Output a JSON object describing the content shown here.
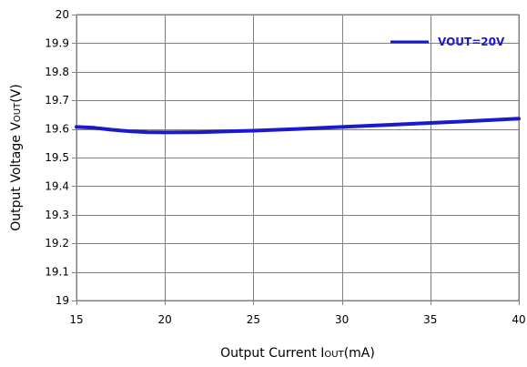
{
  "chart_data": {
    "type": "line",
    "xlabel": "Output Current IOUT(mA)",
    "xlabel_parts": {
      "pre": "Output Current I",
      "sub": "OUT",
      "post": "(mA)"
    },
    "ylabel": "Output Voltage VOUT(V)",
    "ylabel_parts": {
      "pre": "Output Voltage V",
      "sub": "OUT",
      "post": "(V)"
    },
    "xlim": [
      15,
      40
    ],
    "ylim": [
      19,
      20
    ],
    "x_ticks": [
      "15",
      "20",
      "25",
      "30",
      "35",
      "40"
    ],
    "y_ticks": [
      "19",
      "19.1",
      "19.2",
      "19.3",
      "19.4",
      "19.5",
      "19.6",
      "19.7",
      "19.8",
      "19.9",
      "20"
    ],
    "grid": true,
    "legend_position": "top-right",
    "series": [
      {
        "name": "VOUT=20V",
        "color": "#1a1acc",
        "x": [
          15,
          16,
          17,
          18,
          19,
          20,
          22,
          25,
          27.5,
          30,
          32.5,
          35,
          37.5,
          40
        ],
        "y": [
          19.607,
          19.604,
          19.597,
          19.592,
          19.589,
          19.588,
          19.589,
          19.594,
          19.6,
          19.607,
          19.614,
          19.621,
          19.628,
          19.636
        ]
      }
    ]
  }
}
